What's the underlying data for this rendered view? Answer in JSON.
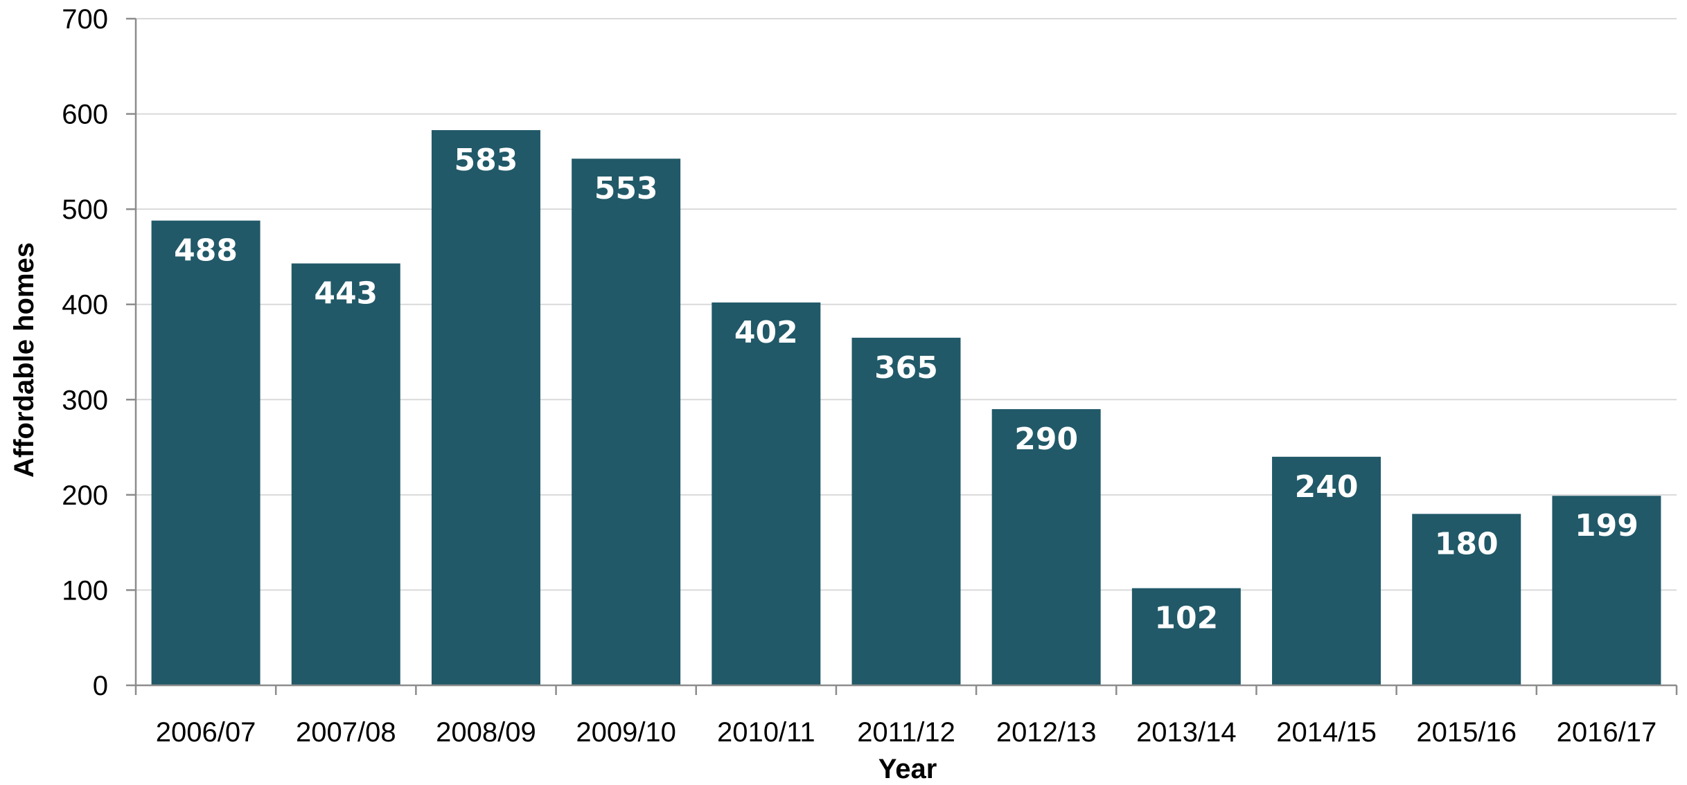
{
  "chart_data": {
    "type": "bar",
    "categories": [
      "2006/07",
      "2007/08",
      "2008/09",
      "2009/10",
      "2010/11",
      "2011/12",
      "2012/13",
      "2013/14",
      "2014/15",
      "2015/16",
      "2016/17"
    ],
    "values": [
      488,
      443,
      583,
      553,
      402,
      365,
      290,
      102,
      240,
      180,
      199
    ],
    "title": "",
    "xlabel": "Year",
    "ylabel": "Affordable homes",
    "ylim": [
      0,
      700
    ],
    "yticks": [
      0,
      100,
      200,
      300,
      400,
      500,
      600,
      700
    ],
    "grid": true,
    "legend": "none",
    "data_labels": true,
    "bar_color": "#215968",
    "label_color": "#ffffff"
  }
}
